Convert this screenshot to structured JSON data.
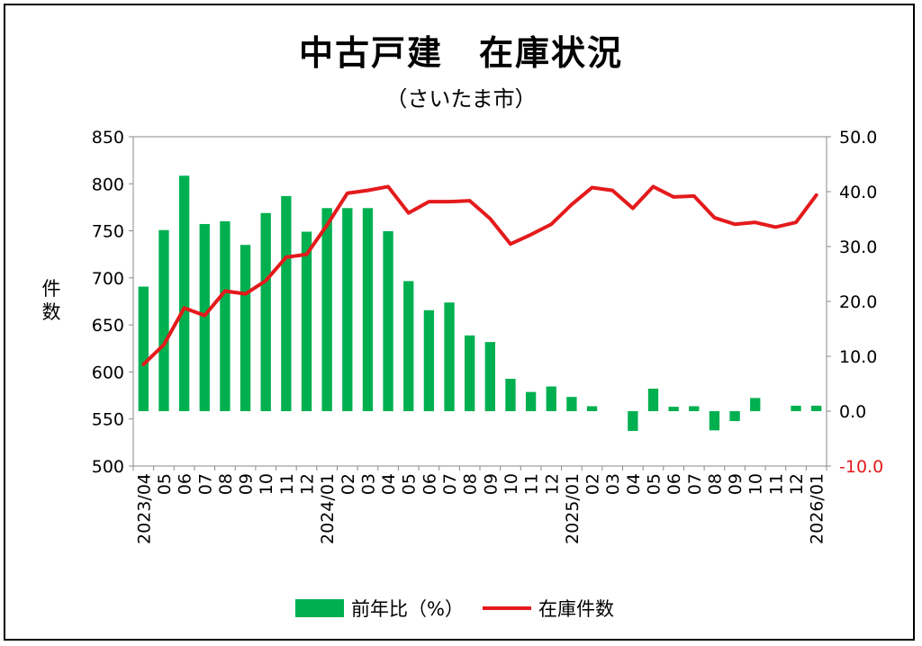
{
  "chart_data": {
    "type": "bar+line",
    "title": "中古戸建　在庫状況",
    "subtitle": "（さいたま市）",
    "ylabel_left": "件数",
    "categories": [
      "2023/04",
      "05",
      "06",
      "07",
      "08",
      "09",
      "10",
      "11",
      "12",
      "2024/01",
      "02",
      "03",
      "04",
      "05",
      "06",
      "07",
      "08",
      "09",
      "10",
      "11",
      "12",
      "2025/01",
      "02",
      "03",
      "04",
      "05",
      "06",
      "07",
      "08",
      "09",
      "10",
      "11",
      "12",
      "2026/01"
    ],
    "left_axis": {
      "min": 500,
      "max": 850,
      "ticks": [
        "500",
        "550",
        "600",
        "650",
        "700",
        "750",
        "800",
        "850"
      ]
    },
    "right_axis": {
      "min": -10,
      "max": 50,
      "ticks": [
        "-10.0",
        "0.0",
        "10.0",
        "20.0",
        "30.0",
        "40.0",
        "50.0"
      ],
      "negative_color": "#e41a1c"
    },
    "series": [
      {
        "name": "前年比（%）",
        "kind": "bar",
        "axis": "right",
        "color": "#00b050",
        "values": [
          22.7,
          33.0,
          42.9,
          34.1,
          34.6,
          30.3,
          36.1,
          39.2,
          32.7,
          37.0,
          37.0,
          37.0,
          32.8,
          23.7,
          18.4,
          19.8,
          13.8,
          12.6,
          5.9,
          3.5,
          4.5,
          2.6,
          0.9,
          0.0,
          -3.6,
          4.1,
          0.8,
          0.9,
          -3.5,
          -1.8,
          2.4,
          0.0,
          1.0,
          1.0
        ]
      },
      {
        "name": "在庫件数",
        "kind": "line",
        "axis": "left",
        "color": "#e41a1c",
        "values": [
          608,
          629,
          668,
          660,
          686,
          683,
          697,
          722,
          725,
          756,
          790,
          793,
          797,
          769,
          781,
          781,
          782,
          763,
          736,
          746,
          757,
          778,
          796,
          793,
          774,
          797,
          786,
          787,
          764,
          757,
          759,
          754,
          759,
          788
        ]
      }
    ],
    "legend": {
      "position": "bottom"
    },
    "grid": false
  }
}
